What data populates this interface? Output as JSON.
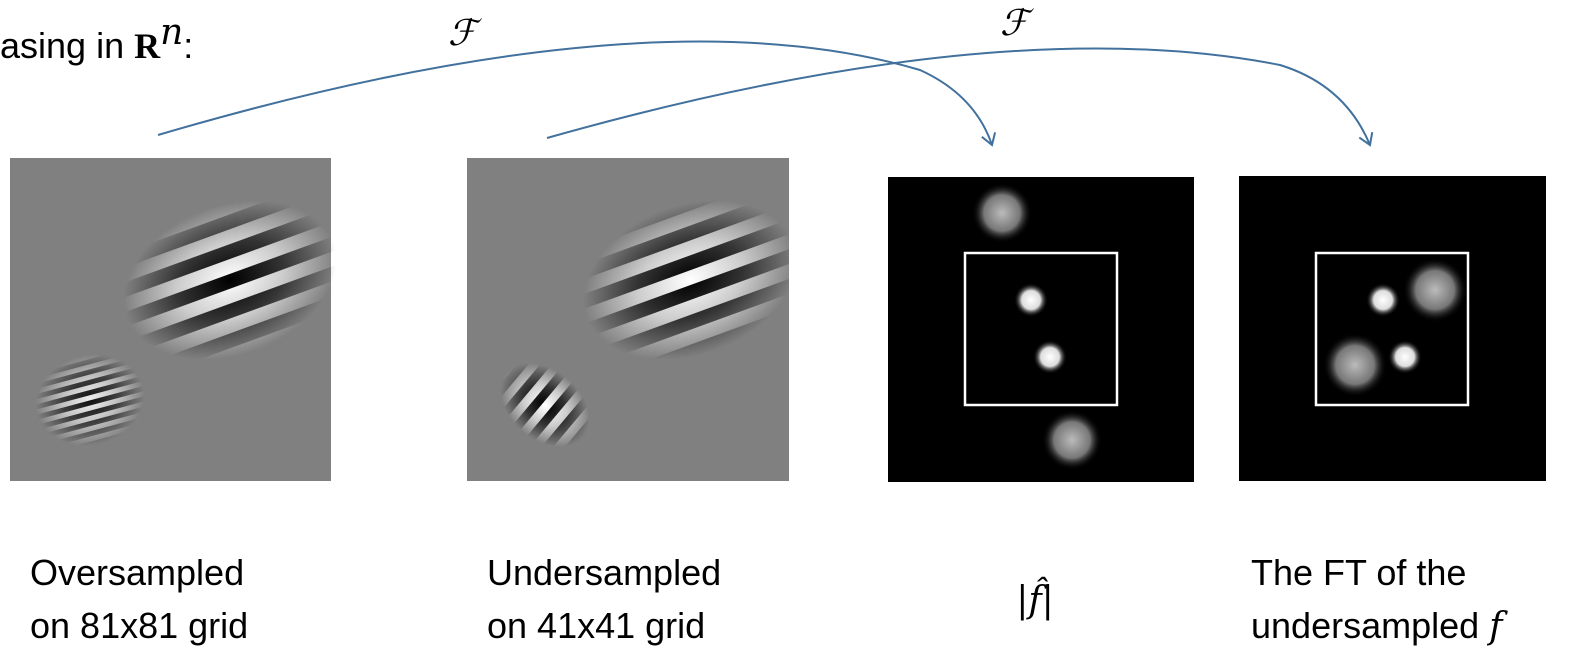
{
  "title": {
    "parts": [
      "asing in",
      "R",
      "n",
      ":"
    ]
  },
  "arrows": [
    {
      "label": "ℱ"
    },
    {
      "label": "ℱ"
    }
  ],
  "captions": [
    {
      "lines": [
        "Oversampled",
        "on 81x81 grid"
      ]
    },
    {
      "lines": [
        "Undersampled",
        "on 41x41 grid"
      ]
    },
    {
      "lines": [
        "|f̂|"
      ]
    },
    {
      "lines": [
        "The FT of the",
        "undersampled",
        "f"
      ]
    }
  ]
}
